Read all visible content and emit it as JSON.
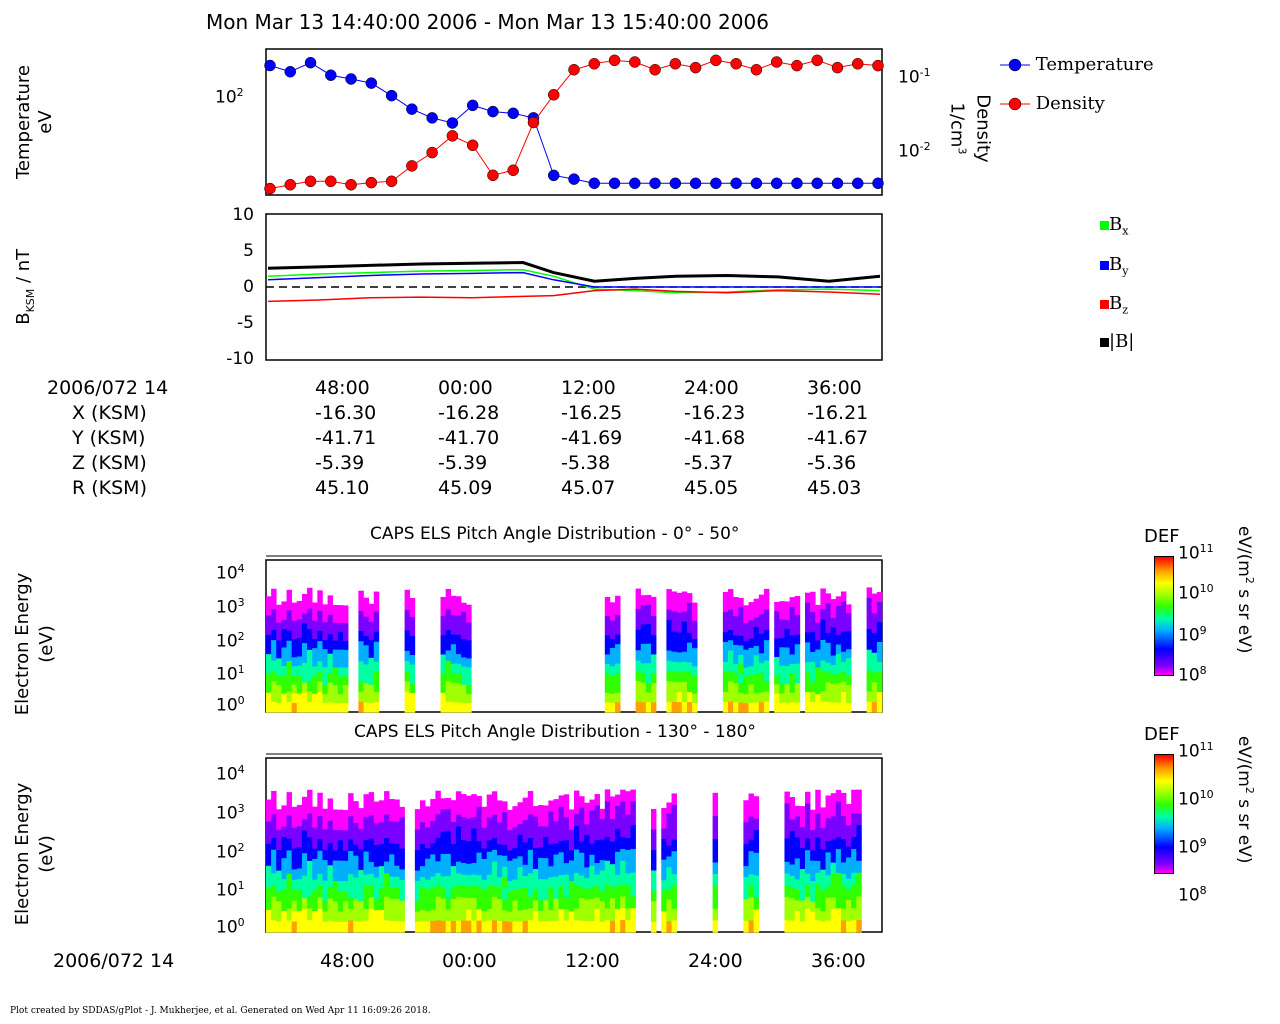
{
  "header": {
    "title": "Mon Mar 13 14:40:00 2006 - Mon Mar 13 15:40:00 2006"
  },
  "panel1": {
    "ylabel_left_line1": "Temperature",
    "ylabel_left_line2": "eV",
    "ylabel_right_line1": "Density",
    "ylabel_right_line2": "1/cm",
    "ylabel_right_sup": "3",
    "left_tick": {
      "base": "10",
      "exp": "2"
    },
    "right_ticks": [
      {
        "base": "10",
        "exp": "-1"
      },
      {
        "base": "10",
        "exp": "-2"
      }
    ],
    "legend": [
      "Temperature",
      "Density"
    ],
    "colors": {
      "temperature": "#0000ff",
      "density": "#ff0000"
    }
  },
  "panel2": {
    "ylabel_main": "B",
    "ylabel_sub": "KSM",
    "ylabel_rest": " / nT",
    "yticks": [
      "10",
      "5",
      "0",
      "-5",
      "-10"
    ],
    "legend": [
      {
        "base": "B",
        "sub": "x",
        "color": "#00ff00"
      },
      {
        "base": "B",
        "sub": "y",
        "color": "#0000ff"
      },
      {
        "base": "B",
        "sub": "z",
        "color": "#ff0000"
      },
      {
        "base": "|B|",
        "sub": "",
        "color": "#000000"
      }
    ]
  },
  "ephemeris": {
    "date_label": "2006/072 14",
    "times": [
      "48:00",
      "00:00",
      "12:00",
      "24:00",
      "36:00"
    ],
    "rows": [
      {
        "label": "X (KSM)",
        "values": [
          "-16.30",
          "-16.28",
          "-16.25",
          "-16.23",
          "-16.21"
        ]
      },
      {
        "label": "Y (KSM)",
        "values": [
          "-41.71",
          "-41.70",
          "-41.69",
          "-41.68",
          "-41.67"
        ]
      },
      {
        "label": "Z (KSM)",
        "values": [
          "-5.39",
          "-5.39",
          "-5.38",
          "-5.37",
          "-5.36"
        ]
      },
      {
        "label": "R (KSM)",
        "values": [
          "45.10",
          "45.09",
          "45.07",
          "45.05",
          "45.03"
        ]
      }
    ]
  },
  "spec1": {
    "title": "CAPS ELS Pitch Angle Distribution - 0° - 50°",
    "ylabel_line1": "Electron Energy",
    "ylabel_line2": "(eV)",
    "yticks": [
      {
        "base": "10",
        "exp": "4"
      },
      {
        "base": "10",
        "exp": "3"
      },
      {
        "base": "10",
        "exp": "2"
      },
      {
        "base": "10",
        "exp": "1"
      },
      {
        "base": "10",
        "exp": "0"
      }
    ],
    "cbar_title": "DEF",
    "cbar_ticks": [
      {
        "base": "10",
        "exp": "11"
      },
      {
        "base": "10",
        "exp": "10"
      },
      {
        "base": "10",
        "exp": "9"
      },
      {
        "base": "10",
        "exp": "8"
      }
    ],
    "cbar_units_a": "eV/(m",
    "cbar_units_sup": "2",
    "cbar_units_b": " s sr eV)"
  },
  "spec2": {
    "title": "CAPS ELS Pitch Angle Distribution - 130° - 180°",
    "ylabel_line1": "Electron Energy",
    "ylabel_line2": "(eV)",
    "yticks": [
      {
        "base": "10",
        "exp": "4"
      },
      {
        "base": "10",
        "exp": "3"
      },
      {
        "base": "10",
        "exp": "2"
      },
      {
        "base": "10",
        "exp": "1"
      },
      {
        "base": "10",
        "exp": "0"
      }
    ],
    "cbar_title": "DEF",
    "cbar_ticks": [
      {
        "base": "10",
        "exp": "11"
      },
      {
        "base": "10",
        "exp": "10"
      },
      {
        "base": "10",
        "exp": "9"
      },
      {
        "base": "10",
        "exp": "8"
      }
    ],
    "cbar_units_a": "eV/(m",
    "cbar_units_sup": "2",
    "cbar_units_b": " s sr eV)"
  },
  "bottom_axis": {
    "date_label": "2006/072 14",
    "times": [
      "48:00",
      "00:00",
      "12:00",
      "24:00",
      "36:00"
    ]
  },
  "footer": {
    "text": "Plot created by SDDAS/gPlot - J. Mukherjee, et al.  Generated on Wed Apr 11 16:09:26 2018."
  },
  "chart_data": [
    {
      "type": "scatter",
      "x_unit": "minutes after 14:40",
      "series": [
        {
          "name": "Temperature",
          "axis": "left",
          "x": [
            0,
            2,
            4,
            6,
            8,
            10,
            12,
            14,
            16,
            18,
            20,
            22,
            24,
            26,
            28,
            30,
            32,
            34,
            36,
            38,
            40,
            42,
            44,
            46,
            48,
            50,
            52,
            54,
            56,
            58,
            60
          ],
          "values": [
            150,
            130,
            160,
            120,
            110,
            100,
            75,
            55,
            45,
            40,
            60,
            52,
            50,
            45,
            12,
            11,
            10,
            10,
            10,
            10,
            10,
            10,
            10,
            10,
            10,
            10,
            10,
            10,
            10,
            10,
            10
          ]
        },
        {
          "name": "Density",
          "axis": "right",
          "x": [
            0,
            2,
            4,
            6,
            8,
            10,
            12,
            14,
            16,
            18,
            20,
            22,
            24,
            26,
            28,
            30,
            32,
            34,
            36,
            38,
            40,
            42,
            44,
            46,
            48,
            50,
            52,
            54,
            56,
            58,
            60
          ],
          "values": [
            0.004,
            0.0045,
            0.005,
            0.005,
            0.0045,
            0.0048,
            0.005,
            0.008,
            0.012,
            0.02,
            0.015,
            0.006,
            0.007,
            0.03,
            0.07,
            0.15,
            0.18,
            0.2,
            0.19,
            0.15,
            0.18,
            0.16,
            0.2,
            0.18,
            0.15,
            0.19,
            0.17,
            0.2,
            0.16,
            0.18,
            0.17
          ]
        }
      ]
    },
    {
      "type": "line",
      "x_unit": "minutes after 14:40",
      "ylim": [
        -10,
        10
      ],
      "x": [
        0,
        5,
        10,
        15,
        20,
        25,
        28,
        32,
        36,
        40,
        45,
        50,
        55,
        60
      ],
      "series": [
        {
          "name": "Bx",
          "values": [
            1.5,
            1.8,
            2,
            2.2,
            2.3,
            2.4,
            1.5,
            -0.3,
            -0.5,
            -0.8,
            -0.7,
            -0.4,
            -0.3,
            -0.5
          ]
        },
        {
          "name": "By",
          "values": [
            1,
            1.3,
            1.6,
            1.8,
            1.9,
            2,
            1,
            0,
            0,
            0,
            0,
            0,
            0,
            0
          ]
        },
        {
          "name": "Bz",
          "values": [
            -2,
            -1.8,
            -1.5,
            -1.4,
            -1.5,
            -1.3,
            -1.2,
            -0.5,
            -0.3,
            -0.6,
            -0.8,
            -0.5,
            -0.7,
            -1
          ]
        },
        {
          "name": "|B|",
          "values": [
            2.6,
            2.8,
            3,
            3.2,
            3.3,
            3.4,
            2,
            0.8,
            1.2,
            1.5,
            1.6,
            1.4,
            0.8,
            1.5
          ]
        }
      ]
    },
    {
      "type": "heatmap",
      "title": "CAPS ELS Pitch Angle Distribution - 0° - 50°",
      "ylabel": "Electron Energy (eV)",
      "ylim": [
        1,
        20000
      ],
      "colorbar": {
        "label": "DEF",
        "range": [
          100000000.0,
          100000000000.0
        ]
      }
    },
    {
      "type": "heatmap",
      "title": "CAPS ELS Pitch Angle Distribution - 130° - 180°",
      "ylabel": "Electron Energy (eV)",
      "ylim": [
        1,
        20000
      ],
      "colorbar": {
        "label": "DEF",
        "range": [
          100000000.0,
          100000000000.0
        ]
      }
    }
  ]
}
